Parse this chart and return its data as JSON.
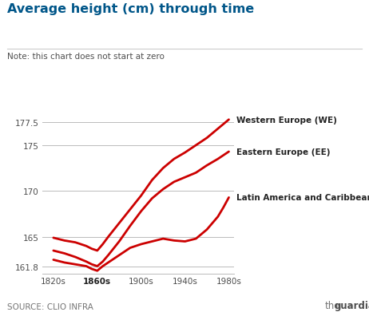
{
  "title": "Average height (cm) through time",
  "note": "Note: this chart does not start at zero",
  "source": "SOURCE: CLIO INFRA",
  "guardian_text": "the",
  "guardian_text2": "guardian",
  "x_ticks": [
    1820,
    1860,
    1900,
    1940,
    1980
  ],
  "x_tick_labels": [
    "1820s",
    "1860s",
    "1900s",
    "1940s",
    "1980s"
  ],
  "x_bold_tick": 1860,
  "ylim": [
    161.0,
    178.5
  ],
  "y_ticks": [
    161.8,
    165,
    170,
    175,
    177.5
  ],
  "western_europe": {
    "x": [
      1820,
      1830,
      1840,
      1850,
      1855,
      1860,
      1865,
      1870,
      1880,
      1890,
      1900,
      1910,
      1920,
      1930,
      1940,
      1950,
      1960,
      1970,
      1975,
      1980
    ],
    "y": [
      164.9,
      164.6,
      164.4,
      164.0,
      163.7,
      163.5,
      164.2,
      165.0,
      166.5,
      168.0,
      169.5,
      171.2,
      172.5,
      173.5,
      174.2,
      175.0,
      175.8,
      176.8,
      177.3,
      177.8
    ],
    "label": "Western Europe (WE)"
  },
  "eastern_europe": {
    "x": [
      1820,
      1830,
      1840,
      1850,
      1855,
      1860,
      1865,
      1870,
      1880,
      1890,
      1900,
      1910,
      1920,
      1930,
      1940,
      1950,
      1960,
      1970,
      1975,
      1980
    ],
    "y": [
      163.5,
      163.2,
      162.8,
      162.3,
      162.0,
      161.8,
      162.3,
      163.0,
      164.5,
      166.2,
      167.8,
      169.2,
      170.2,
      171.0,
      171.5,
      172.0,
      172.8,
      173.5,
      173.9,
      174.3
    ],
    "label": "Eastern Europe (EE)"
  },
  "latin_america": {
    "x": [
      1820,
      1830,
      1840,
      1850,
      1855,
      1860,
      1865,
      1870,
      1880,
      1890,
      1900,
      1910,
      1920,
      1930,
      1940,
      1950,
      1960,
      1970,
      1975,
      1980
    ],
    "y": [
      162.5,
      162.2,
      162.0,
      161.8,
      161.5,
      161.3,
      161.8,
      162.2,
      163.0,
      163.8,
      164.2,
      164.5,
      164.8,
      164.6,
      164.5,
      164.8,
      165.8,
      167.2,
      168.2,
      169.3
    ],
    "label": "Latin America and Caribbean (LA)"
  },
  "line_color": "#cc0000",
  "bg_color": "#ffffff",
  "grid_color": "#bbbbbb",
  "title_color": "#005689",
  "text_color": "#4d4d4d",
  "note_color": "#4d4d4d",
  "source_color": "#767676",
  "guardian_color": "#767676",
  "guardian_bold_color": "#4d4d4d"
}
